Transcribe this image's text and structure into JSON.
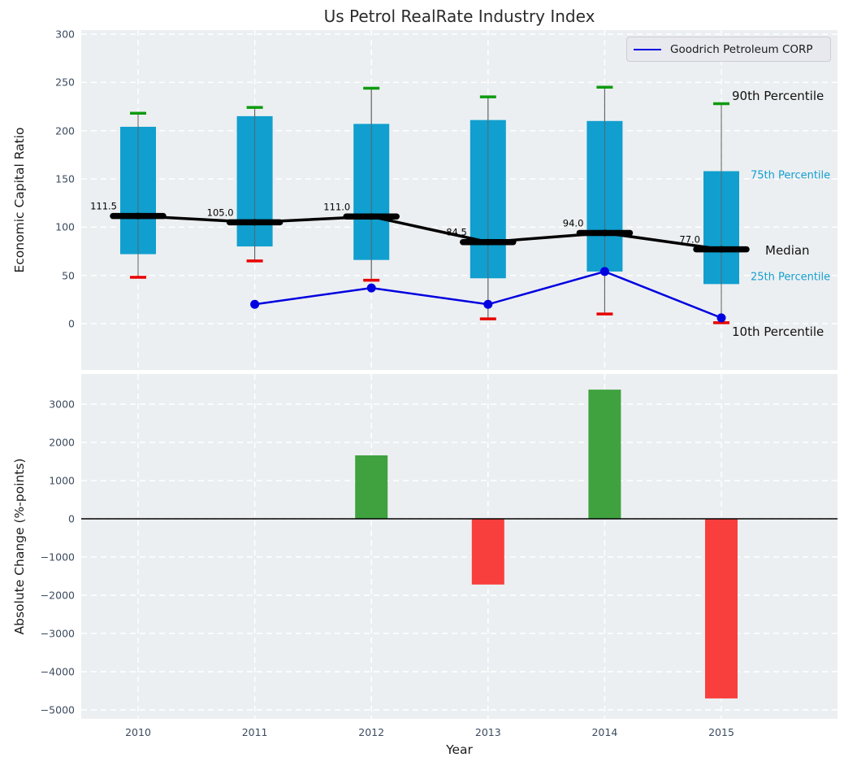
{
  "title": "Us Petrol RealRate Industry Index",
  "legend": {
    "label": "Goodrich Petroleum CORP"
  },
  "colors": {
    "plot_bg": "#ECEFF1",
    "grid": "#FFFFFF",
    "box_fill": "#109FCF",
    "whisker": "#606060",
    "cap_top": "#0E9B0E",
    "cap_bottom": "#E80000",
    "median": "#000000",
    "company_line": "#0000E0",
    "bar_positive": "#3FA23F",
    "bar_negative": "#F93E3E",
    "tick_label": "#3C4B60",
    "annotation_accent": "#149FD0"
  },
  "chart_data": [
    {
      "type": "boxplot+line",
      "title": "Us Petrol RealRate Industry Index",
      "xlabel": "Year",
      "ylabel": "Economic Capital Ratio",
      "ylim": [
        -45,
        304
      ],
      "yticks": [
        0,
        50,
        100,
        150,
        200,
        250,
        300
      ],
      "grid": true,
      "legend_position": "upper right",
      "categories": [
        "2010",
        "2011",
        "2012",
        "2013",
        "2014",
        "2015"
      ],
      "series": [
        {
          "name": "90th Percentile",
          "values": [
            218,
            224,
            244,
            235,
            245,
            228
          ]
        },
        {
          "name": "75th Percentile",
          "values": [
            204,
            215,
            207,
            211,
            210,
            158
          ]
        },
        {
          "name": "Median",
          "values": [
            111.5,
            105.0,
            111.0,
            84.5,
            94.0,
            77.0
          ]
        },
        {
          "name": "25th Percentile",
          "values": [
            72,
            80,
            66,
            47,
            54,
            41
          ]
        },
        {
          "name": "10th Percentile",
          "values": [
            48,
            65,
            45,
            5,
            10,
            1
          ]
        },
        {
          "name": "Goodrich Petroleum CORP",
          "categories": [
            "2011",
            "2012",
            "2013",
            "2014",
            "2015"
          ],
          "values": [
            20,
            37,
            20,
            54,
            6
          ]
        }
      ],
      "median_labels": [
        "111.5",
        "105.0",
        "111.0",
        "84.5",
        "94.0",
        "77.0"
      ],
      "right_annotations": [
        "90th Percentile",
        "75th Percentile",
        "Median",
        "25th Percentile",
        "10th Percentile"
      ]
    },
    {
      "type": "bar",
      "xlabel": "Year",
      "ylabel": "Absolute Change (%-points)",
      "ylim": [
        -5230,
        3780
      ],
      "yticks": [
        3000,
        2000,
        1000,
        0,
        -1000,
        -2000,
        -3000,
        -4000,
        -5000
      ],
      "grid": true,
      "categories": [
        "2010",
        "2011",
        "2012",
        "2013",
        "2014",
        "2015"
      ],
      "values": [
        null,
        null,
        1660,
        -1720,
        3380,
        -4700
      ]
    }
  ]
}
